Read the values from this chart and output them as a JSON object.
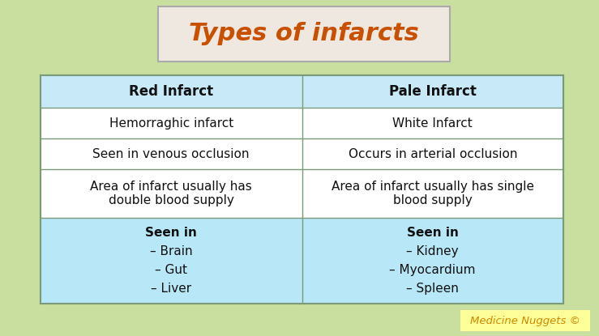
{
  "title": "Types of infarcts",
  "title_color": "#C85000",
  "title_fontsize": 22,
  "title_box_facecolor": "#EEE8E0",
  "title_box_edgecolor": "#AAAAAA",
  "bg_color": "#C8DFA0",
  "table_bg_color": "#FFFFFF",
  "header_bg_color": "#C8EAF8",
  "last_row_bg_color": "#B8E8F8",
  "table_border_color": "#7A9A7A",
  "text_color": "#111111",
  "watermark_text": "Medicine Nuggets ©",
  "watermark_bg": "#FFFF99",
  "watermark_text_color": "#CC8800",
  "col1_header": "Red Infarct",
  "col2_header": "Pale Infarct",
  "rows": [
    [
      "Hemorraghic infarct",
      "White Infarct"
    ],
    [
      "Seen in venous occlusion",
      "Occurs in arterial occlusion"
    ],
    [
      "Area of infarct usually has\ndouble blood supply",
      "Area of infarct usually has single\nblood supply"
    ],
    [
      "Seen in\n– Brain\n– Gut\n– Liver",
      "Seen in\n– Kidney\n– Myocardium\n– Spleen"
    ]
  ],
  "header_fontsize": 12,
  "body_fontsize": 11,
  "last_row_fontsize": 11
}
